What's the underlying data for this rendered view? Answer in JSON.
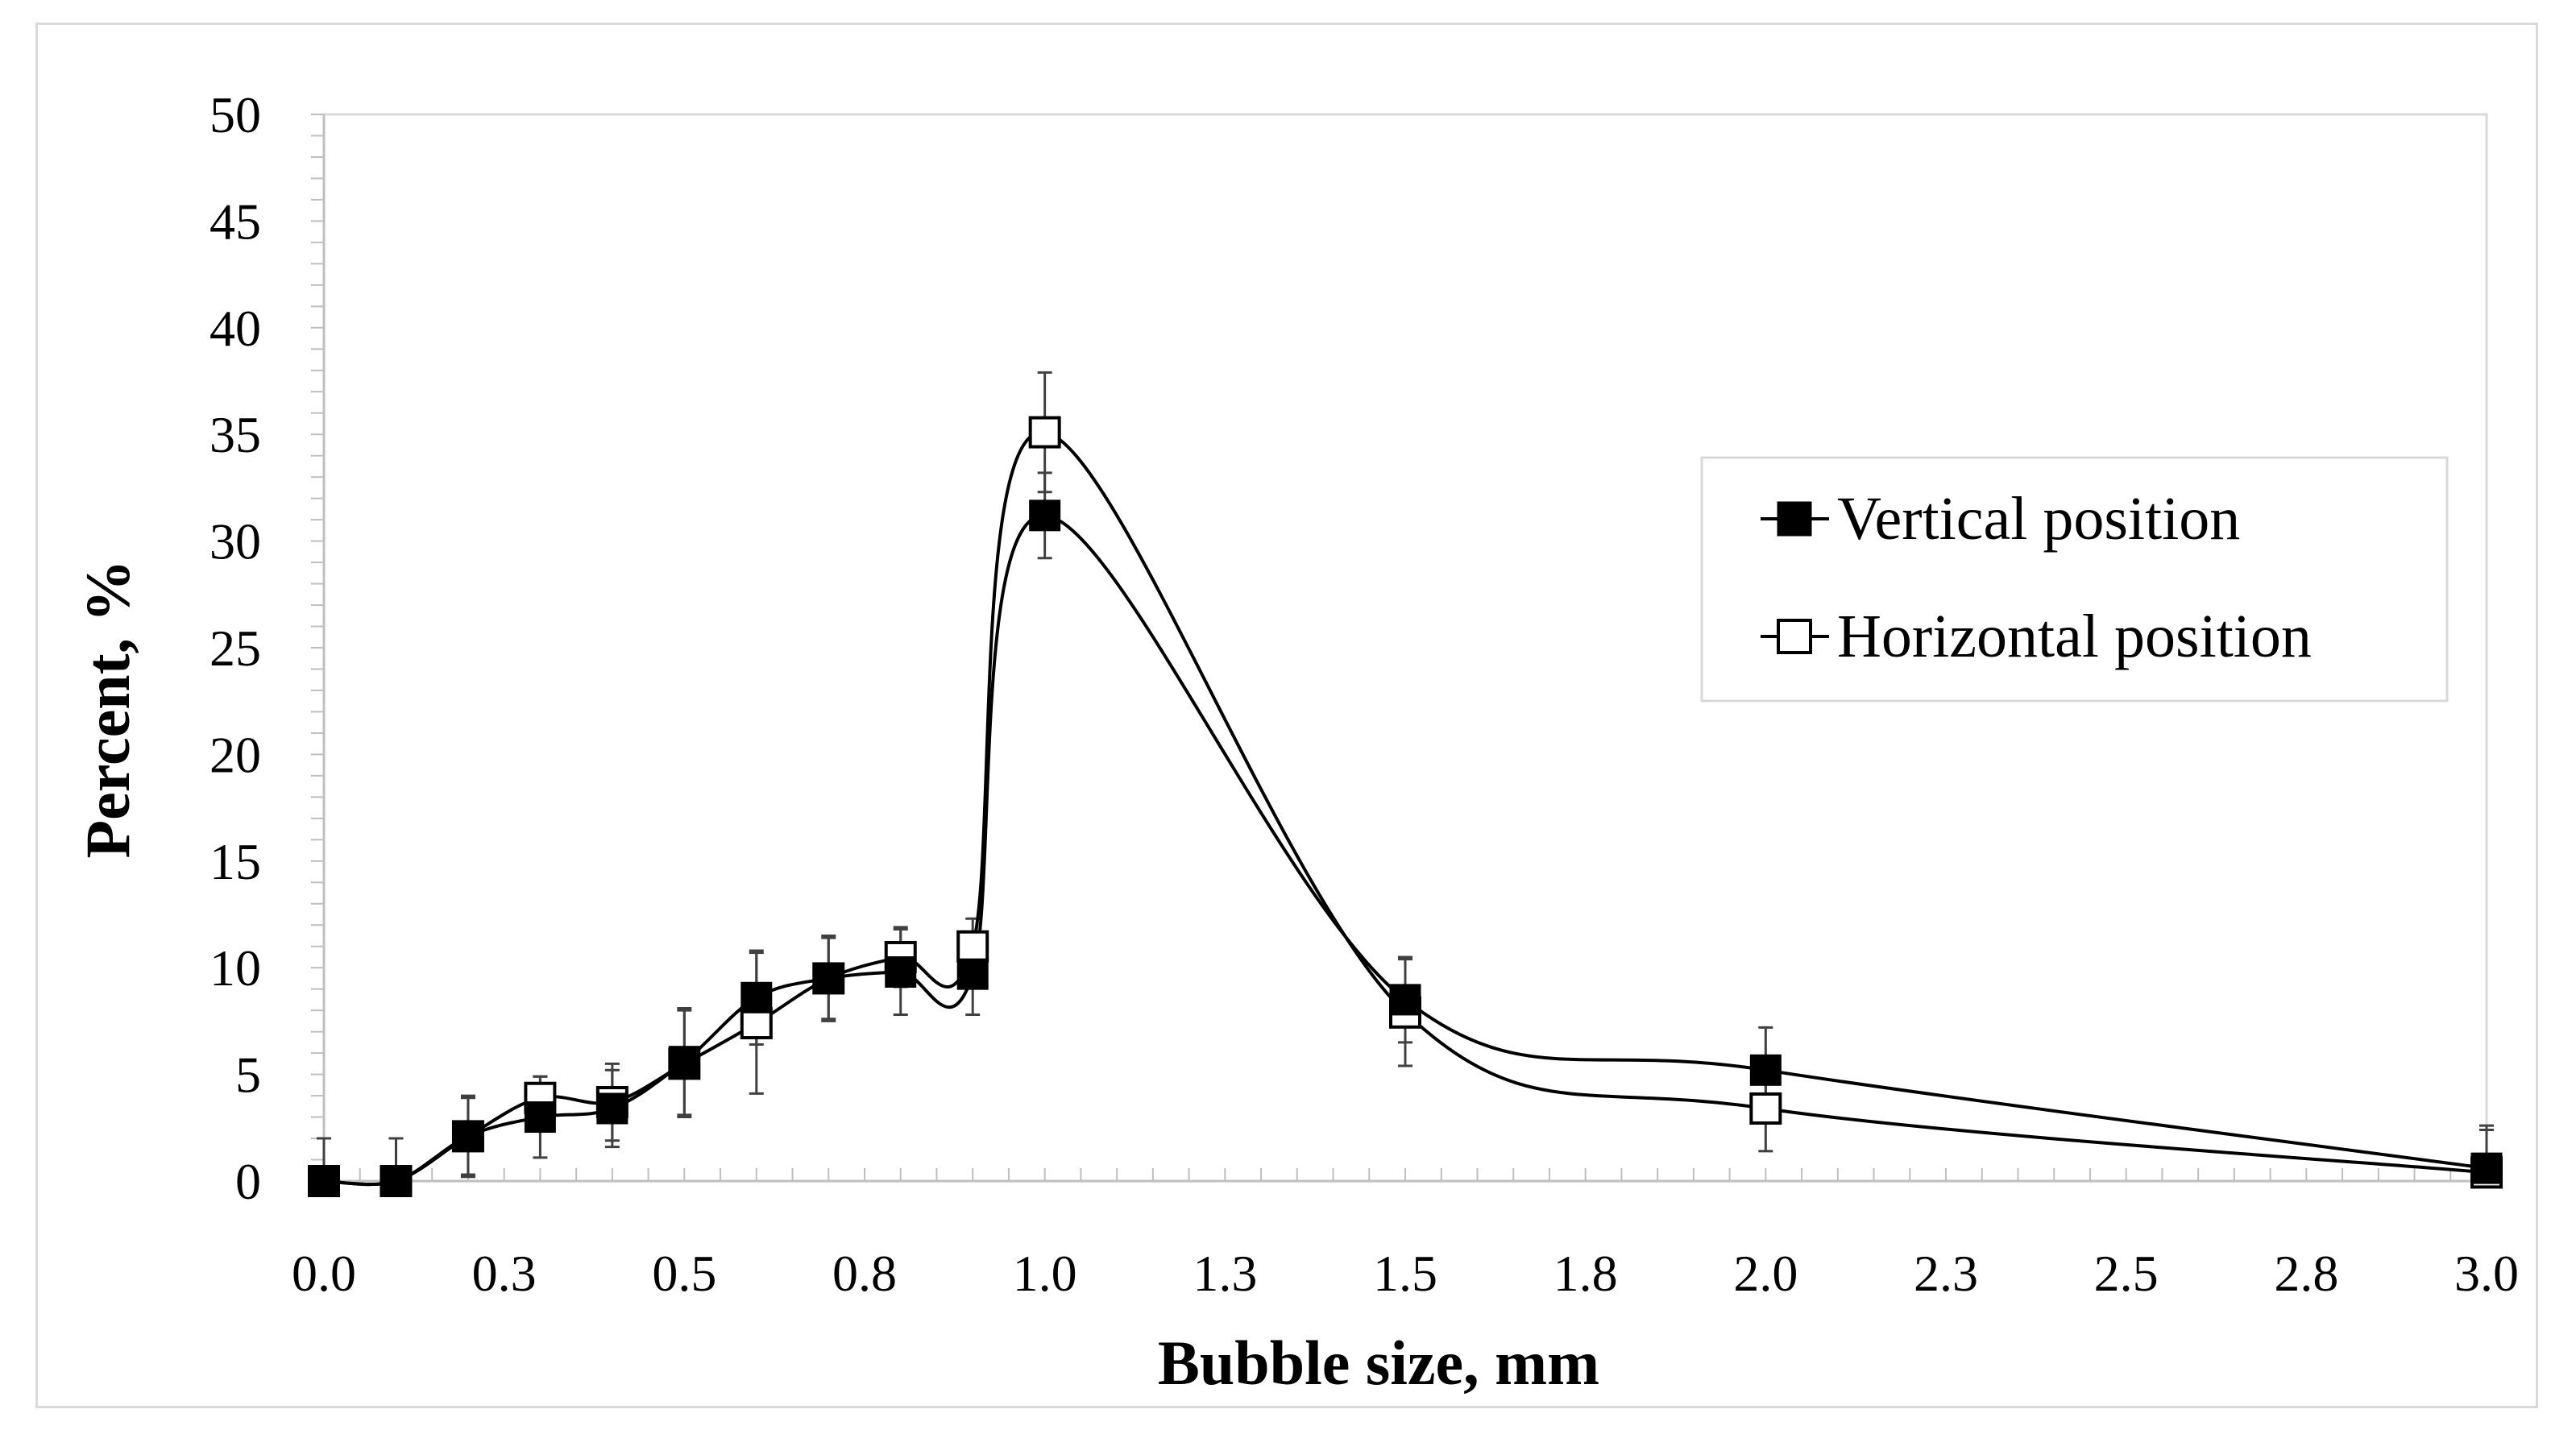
{
  "chart_data": {
    "type": "line",
    "title": "",
    "xlabel": "Bubble size, mm",
    "ylabel": "Percent, %",
    "xlim": [
      0,
      3
    ],
    "ylim": [
      0,
      50
    ],
    "x_tick_values": [
      0,
      0.25,
      0.5,
      0.75,
      1.0,
      1.25,
      1.5,
      1.75,
      2.0,
      2.25,
      2.5,
      2.75,
      3.0
    ],
    "x_tick_labels": [
      "0.0",
      "0.3",
      "0.5",
      "0.8",
      "1.0",
      "1.3",
      "1.5",
      "1.8",
      "2.0",
      "2.3",
      "2.5",
      "2.8",
      "3.0"
    ],
    "y_ticks": [
      0,
      5,
      10,
      15,
      20,
      25,
      30,
      35,
      40,
      45,
      50
    ],
    "y_tick_labels": [
      "0",
      "5",
      "10",
      "15",
      "20",
      "25",
      "30",
      "35",
      "40",
      "45",
      "50"
    ],
    "x_minor_step": 0.05,
    "y_minor_step": 1,
    "legend_position": "right",
    "series": [
      {
        "name": "Vertical position",
        "marker": "filled-square",
        "color": "#000000",
        "x": [
          0,
          0.1,
          0.2,
          0.3,
          0.4,
          0.5,
          0.6,
          0.7,
          0.8,
          0.9,
          1.0,
          1.5,
          2.0,
          3.0
        ],
        "values": [
          0,
          0,
          2.1,
          3.0,
          3.4,
          5.6,
          8.6,
          9.5,
          9.8,
          9.7,
          31.2,
          8.5,
          5.2,
          0.6
        ],
        "errors": [
          2.0,
          2.0,
          1.8,
          1.9,
          1.8,
          2.5,
          2.2,
          1.9,
          2.0,
          1.9,
          2.0,
          2.0,
          2.0,
          2.0
        ]
      },
      {
        "name": "Horizontal position",
        "marker": "open-square",
        "color": "#000000",
        "x": [
          0,
          0.1,
          0.2,
          0.3,
          0.4,
          0.5,
          0.6,
          0.7,
          0.8,
          0.9,
          1.0,
          1.5,
          2.0,
          3.0
        ],
        "values": [
          0,
          0,
          2.1,
          3.9,
          3.7,
          5.5,
          7.4,
          9.5,
          10.5,
          11.0,
          35.1,
          7.9,
          3.4,
          0.4
        ],
        "errors": [
          2.0,
          2.0,
          1.9,
          1.0,
          1.8,
          2.5,
          3.3,
          2.0,
          1.4,
          1.3,
          2.8,
          2.5,
          2.0,
          2.0
        ]
      }
    ]
  }
}
